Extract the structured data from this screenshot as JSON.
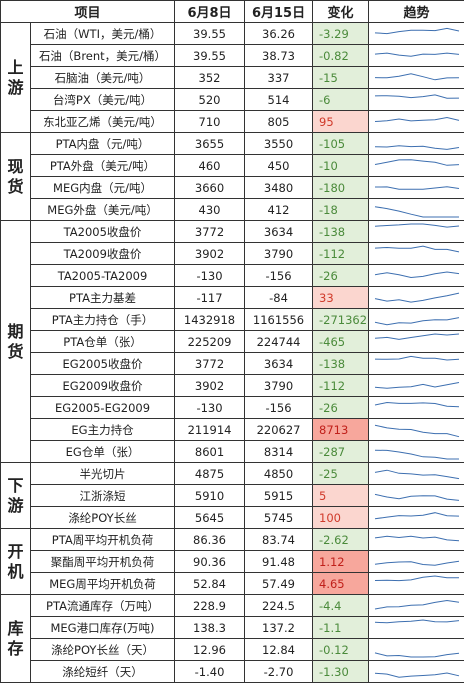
{
  "header": [
    "项目",
    "6月8日",
    "6月15日",
    "变化",
    "趋势"
  ],
  "sections": [
    {
      "label": "上游",
      "rows": [
        [
          "石油（WTI，美元/桶）",
          "39.55",
          "36.26",
          "-3.29"
        ],
        [
          "石油（Brent，美元/桶）",
          "39.55",
          "38.73",
          "-0.82"
        ],
        [
          "石脑油（美元/吨）",
          "352",
          "337",
          "-15"
        ],
        [
          "台湾PX（美元/吨）",
          "520",
          "514",
          "-6"
        ],
        [
          "东北亚乙烯（美元/吨）",
          "710",
          "805",
          "95"
        ]
      ]
    },
    {
      "label": "现货",
      "rows": [
        [
          "PTA内盘（元/吨）",
          "3655",
          "3550",
          "-105"
        ],
        [
          "PTA外盘（美元/吨）",
          "460",
          "450",
          "-10"
        ],
        [
          "MEG内盘（元/吨）",
          "3660",
          "3480",
          "-180"
        ],
        [
          "MEG外盘（美元/吨）",
          "430",
          "412",
          "-18"
        ]
      ]
    },
    {
      "label": "期货",
      "rows": [
        [
          "TA2005收盘价",
          "3772",
          "3634",
          "-138"
        ],
        [
          "TA2009收盘价",
          "3902",
          "3790",
          "-112"
        ],
        [
          "TA2005-TA2009",
          "-130",
          "-156",
          "-26"
        ],
        [
          "PTA主力基差",
          "-117",
          "-84",
          "33"
        ],
        [
          "PTA主力持仓（手）",
          "1432918",
          "1161556",
          "-271362"
        ],
        [
          "PTA仓单（张）",
          "225209",
          "224744",
          "-465"
        ],
        [
          "EG2005收盘价",
          "3772",
          "3634",
          "-138"
        ],
        [
          "EG2009收盘价",
          "3902",
          "3790",
          "-112"
        ],
        [
          "EG2005-EG2009",
          "-130",
          "-156",
          "-26"
        ],
        [
          "EG主力持仓",
          "211914",
          "220627",
          "8713"
        ],
        [
          "EG仓单（张）",
          "8601",
          "8314",
          "-287"
        ]
      ]
    },
    {
      "label": "下游",
      "rows": [
        [
          "半光切片",
          "4875",
          "4850",
          "-25"
        ],
        [
          "江浙涤短",
          "5910",
          "5915",
          "5"
        ],
        [
          "涤纶POY长丝",
          "5645",
          "5745",
          "100"
        ]
      ]
    },
    {
      "label": "开机",
      "rows": [
        [
          "PTA周平均开机负荷",
          "86.36",
          "83.74",
          "-2.62"
        ],
        [
          "聚酯周平均开机负荷",
          "90.36",
          "91.48",
          "1.12"
        ],
        [
          "MEG周平均开机负荷",
          "52.84",
          "57.49",
          "4.65"
        ]
      ]
    },
    {
      "label": "库存",
      "rows": [
        [
          "PTA流通库存（万吨）",
          "228.9",
          "224.5",
          "-4.4"
        ],
        [
          "MEG港口库存(万吨)",
          "138.3",
          "137.2",
          "-1.1"
        ],
        [
          "涤纶POY长丝（天）",
          "12.96",
          "12.84",
          "-0.12"
        ],
        [
          "涤纶短纤（天）",
          "-1.40",
          "-2.70",
          "-1.30"
        ]
      ]
    }
  ]
}
